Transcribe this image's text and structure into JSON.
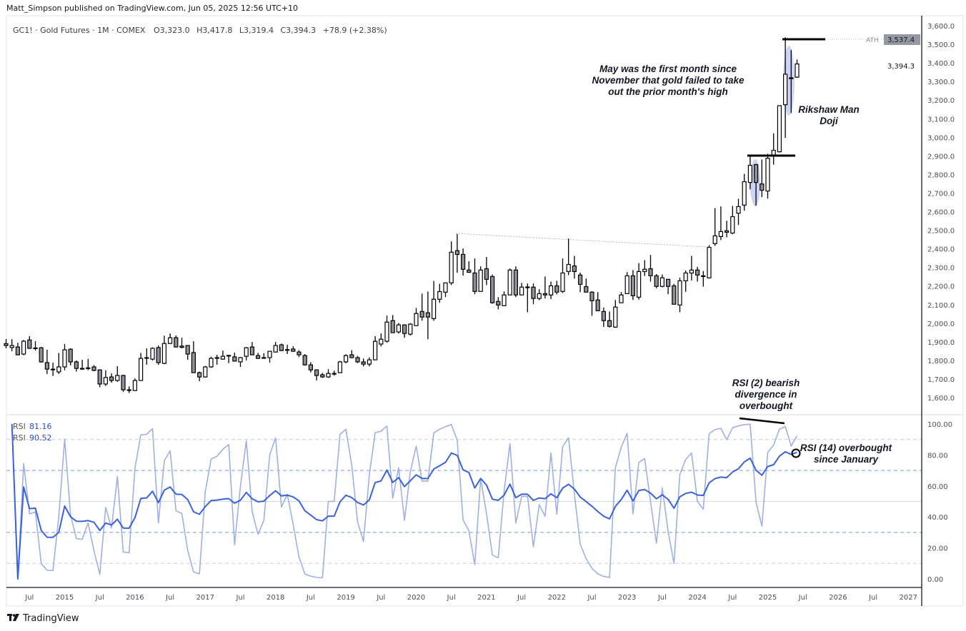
{
  "header": {
    "published": "Matt_Simpson published on TradingView.com, Jun 05, 2025 12:56 UTC+10",
    "symbol_line": "GC1! · Gold Futures · 1M · COMEX",
    "open": "O3,323.0",
    "high": "H3,417.8",
    "low": "L3,319.4",
    "close": "C3,394.3",
    "change": "+78.9 (+2.38%)"
  },
  "price_axis": {
    "labels": [
      "1,600.0",
      "1,700.0",
      "1,800.0",
      "1,900.0",
      "2,000.0",
      "2,100.0",
      "2,200.0",
      "2,300.0",
      "2,400.0",
      "2,500.0",
      "2,600.0",
      "2,700.0",
      "2,800.0",
      "2,900.0",
      "3,000.0",
      "3,100.0",
      "3,200.0",
      "3,300.0",
      "3,400.0",
      "3,500.0",
      "3,600.0"
    ],
    "last_price_label": "3,394.3",
    "ath_label": "3,537.4",
    "ath_tag": "ATH"
  },
  "rsi_axis": {
    "labels": [
      "100.00",
      "80.00",
      "60.00",
      "40.00",
      "20.00",
      "0.00"
    ]
  },
  "rsi_legend": [
    {
      "name": "RSI",
      "value": "81.16"
    },
    {
      "name": "RSI",
      "value": "90.52"
    }
  ],
  "time_axis": {
    "labels": [
      "Jul",
      "2015",
      "Jul",
      "2016",
      "Jul",
      "2017",
      "Jul",
      "2018",
      "Jul",
      "2019",
      "Jul",
      "2020",
      "Jul",
      "2021",
      "Jul",
      "2022",
      "Jul",
      "2023",
      "Jul",
      "2024",
      "Jul",
      "2025",
      "Jul",
      "2026",
      "Jul",
      "2027"
    ]
  },
  "annotations": {
    "may_note": [
      "May was the first month since",
      "November that gold failed to take",
      "out the prior month's high"
    ],
    "doji_note": [
      "Rikshaw Man",
      "Doji"
    ],
    "rsi2_note": [
      "RSI (2) bearish",
      "divergence in",
      "overbought"
    ],
    "rsi14_note": [
      "RSI (14) overbought",
      "since January"
    ]
  },
  "footer": {
    "brand": "TradingView"
  },
  "colors": {
    "up_fill": "#ffffff",
    "down_fill": "#8e9199",
    "candle_border": "#000000",
    "rsi14": "#3a62dc",
    "rsi2": "#9fb0e2",
    "highlight": "#b8c2f2"
  },
  "chart_data": [
    {
      "type": "candlestick",
      "title": "GC1! · Gold Futures · 1M · COMEX",
      "ylim": [
        1600,
        3600
      ],
      "ath": 3537.4,
      "fields": [
        "month",
        "open",
        "high",
        "low",
        "close"
      ],
      "candles": [
        [
          "2014-03",
          1890,
          1915,
          1865,
          1880
        ],
        [
          "2014-04",
          1869,
          1914,
          1849,
          1880
        ],
        [
          "2014-05",
          1872,
          1895,
          1828,
          1830
        ],
        [
          "2014-06",
          1834,
          1910,
          1828,
          1903
        ],
        [
          "2014-07",
          1910,
          1930,
          1862,
          1865
        ],
        [
          "2014-08",
          1867,
          1903,
          1853,
          1866
        ],
        [
          "2014-09",
          1868,
          1872,
          1788,
          1792
        ],
        [
          "2014-10",
          1788,
          1857,
          1727,
          1753
        ],
        [
          "2014-11",
          1753,
          1788,
          1716,
          1752
        ],
        [
          "2014-12",
          1738,
          1840,
          1727,
          1765
        ],
        [
          "2015-01",
          1765,
          1888,
          1747,
          1857
        ],
        [
          "2015-02",
          1860,
          1865,
          1773,
          1792
        ],
        [
          "2015-03",
          1792,
          1800,
          1740,
          1757
        ],
        [
          "2015-04",
          1757,
          1803,
          1750,
          1756
        ],
        [
          "2015-05",
          1759,
          1808,
          1748,
          1760
        ],
        [
          "2015-06",
          1765,
          1775,
          1742,
          1746
        ],
        [
          "2015-07",
          1749,
          1752,
          1656,
          1673
        ],
        [
          "2015-08",
          1673,
          1747,
          1662,
          1708
        ],
        [
          "2015-09",
          1711,
          1730,
          1680,
          1692
        ],
        [
          "2015-10",
          1692,
          1769,
          1685,
          1719
        ],
        [
          "2015-11",
          1719,
          1722,
          1631,
          1642
        ],
        [
          "2015-12",
          1642,
          1660,
          1625,
          1641
        ],
        [
          "2016-01",
          1638,
          1703,
          1636,
          1692
        ],
        [
          "2016-02",
          1692,
          1840,
          1690,
          1811
        ],
        [
          "2016-03",
          1813,
          1865,
          1777,
          1815
        ],
        [
          "2016-04",
          1807,
          1870,
          1800,
          1865
        ],
        [
          "2016-05",
          1869,
          1880,
          1776,
          1788
        ],
        [
          "2016-06",
          1784,
          1933,
          1780,
          1891
        ],
        [
          "2016-07",
          1891,
          1945,
          1888,
          1922
        ],
        [
          "2016-08",
          1922,
          1934,
          1870,
          1872
        ],
        [
          "2016-09",
          1877,
          1922,
          1865,
          1870
        ],
        [
          "2016-10",
          1880,
          1882,
          1803,
          1834
        ],
        [
          "2016-11",
          1842,
          1903,
          1734,
          1734
        ],
        [
          "2016-12",
          1734,
          1740,
          1688,
          1711
        ],
        [
          "2017-01",
          1711,
          1770,
          1708,
          1765
        ],
        [
          "2017-02",
          1765,
          1820,
          1760,
          1811
        ],
        [
          "2017-03",
          1814,
          1830,
          1777,
          1815
        ],
        [
          "2017-04",
          1807,
          1853,
          1803,
          1822
        ],
        [
          "2017-05",
          1827,
          1830,
          1785,
          1826
        ],
        [
          "2017-06",
          1819,
          1842,
          1794,
          1796
        ],
        [
          "2017-07",
          1792,
          1818,
          1765,
          1815
        ],
        [
          "2017-08",
          1822,
          1872,
          1800,
          1868
        ],
        [
          "2017-09",
          1872,
          1899,
          1828,
          1830
        ],
        [
          "2017-10",
          1826,
          1840,
          1808,
          1811
        ],
        [
          "2017-11",
          1814,
          1838,
          1810,
          1815
        ],
        [
          "2017-12",
          1815,
          1849,
          1788,
          1849
        ],
        [
          "2018-01",
          1845,
          1899,
          1843,
          1880
        ],
        [
          "2018-02",
          1884,
          1890,
          1850,
          1853
        ],
        [
          "2018-03",
          1857,
          1884,
          1834,
          1858
        ],
        [
          "2018-04",
          1861,
          1876,
          1847,
          1849
        ],
        [
          "2018-05",
          1845,
          1855,
          1818,
          1830
        ],
        [
          "2018-06",
          1826,
          1834,
          1772,
          1776
        ],
        [
          "2018-07",
          1776,
          1790,
          1735,
          1749
        ],
        [
          "2018-08",
          1749,
          1750,
          1692,
          1719
        ],
        [
          "2018-09",
          1723,
          1733,
          1706,
          1711
        ],
        [
          "2018-10",
          1711,
          1753,
          1706,
          1730
        ],
        [
          "2018-11",
          1730,
          1745,
          1718,
          1730
        ],
        [
          "2018-12",
          1734,
          1797,
          1733,
          1792
        ],
        [
          "2019-01",
          1792,
          1833,
          1785,
          1826
        ],
        [
          "2019-02",
          1830,
          1855,
          1812,
          1815
        ],
        [
          "2019-03",
          1815,
          1824,
          1786,
          1792
        ],
        [
          "2019-04",
          1792,
          1810,
          1768,
          1780
        ],
        [
          "2019-05",
          1780,
          1816,
          1768,
          1803
        ],
        [
          "2019-06",
          1803,
          1930,
          1803,
          1903
        ],
        [
          "2019-07",
          1888,
          1945,
          1875,
          1914
        ],
        [
          "2019-08",
          1903,
          2041,
          1895,
          2006
        ],
        [
          "2019-09",
          2014,
          2044,
          1949,
          1949
        ],
        [
          "2019-10",
          1953,
          2001,
          1944,
          1991
        ],
        [
          "2019-11",
          1991,
          1994,
          1922,
          1945
        ],
        [
          "2019-12",
          1941,
          2000,
          1934,
          1995
        ],
        [
          "2020-01",
          1987,
          2082,
          1987,
          2052
        ],
        [
          "2020-02",
          2063,
          2159,
          2014,
          2033
        ],
        [
          "2020-03",
          2056,
          2170,
          1914,
          2033
        ],
        [
          "2020-04",
          2025,
          2227,
          2013,
          2129
        ],
        [
          "2020-05",
          2129,
          2212,
          2110,
          2170
        ],
        [
          "2020-06",
          2167,
          2217,
          2140,
          2217
        ],
        [
          "2020-07",
          2217,
          2440,
          2205,
          2382
        ],
        [
          "2020-08",
          2390,
          2480,
          2271,
          2370
        ],
        [
          "2020-09",
          2370,
          2402,
          2256,
          2290
        ],
        [
          "2020-10",
          2286,
          2333,
          2270,
          2274
        ],
        [
          "2020-11",
          2270,
          2348,
          2156,
          2171
        ],
        [
          "2020-12",
          2171,
          2306,
          2171,
          2286
        ],
        [
          "2021-01",
          2293,
          2356,
          2205,
          2236
        ],
        [
          "2021-02",
          2251,
          2262,
          2105,
          2110
        ],
        [
          "2021-03",
          2117,
          2140,
          2075,
          2098
        ],
        [
          "2021-04",
          2094,
          2171,
          2094,
          2152
        ],
        [
          "2021-05",
          2152,
          2294,
          2152,
          2286
        ],
        [
          "2021-06",
          2286,
          2306,
          2140,
          2152
        ],
        [
          "2021-07",
          2152,
          2217,
          2152,
          2194
        ],
        [
          "2021-08",
          2195,
          2214,
          2059,
          2194
        ],
        [
          "2021-09",
          2194,
          2214,
          2102,
          2133
        ],
        [
          "2021-10",
          2133,
          2183,
          2124,
          2159
        ],
        [
          "2021-11",
          2159,
          2251,
          2133,
          2152
        ],
        [
          "2021-12",
          2152,
          2224,
          2130,
          2201
        ],
        [
          "2022-01",
          2201,
          2228,
          2155,
          2167
        ],
        [
          "2022-02",
          2171,
          2348,
          2162,
          2270
        ],
        [
          "2022-03",
          2278,
          2455,
          2259,
          2316
        ],
        [
          "2022-04",
          2308,
          2362,
          2240,
          2278
        ],
        [
          "2022-05",
          2259,
          2272,
          2167,
          2209
        ],
        [
          "2022-06",
          2197,
          2240,
          2167,
          2167
        ],
        [
          "2022-07",
          2167,
          2172,
          2040,
          2121
        ],
        [
          "2022-08",
          2125,
          2167,
          2067,
          2067
        ],
        [
          "2022-09",
          2063,
          2084,
          1980,
          2014
        ],
        [
          "2022-10",
          2014,
          2063,
          1977,
          1983
        ],
        [
          "2022-11",
          1979,
          2125,
          1975,
          2087
        ],
        [
          "2022-12",
          2110,
          2168,
          2110,
          2152
        ],
        [
          "2023-01",
          2159,
          2275,
          2159,
          2255
        ],
        [
          "2023-02",
          2255,
          2286,
          2125,
          2148
        ],
        [
          "2023-03",
          2140,
          2323,
          2127,
          2278
        ],
        [
          "2023-04",
          2278,
          2339,
          2254,
          2290
        ],
        [
          "2023-05",
          2293,
          2367,
          2224,
          2255
        ],
        [
          "2023-06",
          2255,
          2264,
          2188,
          2198
        ],
        [
          "2023-07",
          2198,
          2262,
          2193,
          2244
        ],
        [
          "2023-08",
          2236,
          2236,
          2156,
          2198
        ],
        [
          "2023-09",
          2201,
          2211,
          2102,
          2102
        ],
        [
          "2023-10",
          2098,
          2245,
          2059,
          2228
        ],
        [
          "2023-11",
          2228,
          2283,
          2169,
          2270
        ],
        [
          "2023-12",
          2270,
          2362,
          2230,
          2286
        ],
        [
          "2024-01",
          2286,
          2303,
          2224,
          2259
        ],
        [
          "2024-02",
          2255,
          2281,
          2197,
          2255
        ],
        [
          "2024-03",
          2244,
          2420,
          2240,
          2408
        ],
        [
          "2024-04",
          2428,
          2619,
          2416,
          2470
        ],
        [
          "2024-05",
          2466,
          2628,
          2447,
          2493
        ],
        [
          "2024-06",
          2497,
          2551,
          2462,
          2489
        ],
        [
          "2024-07",
          2485,
          2631,
          2478,
          2573
        ],
        [
          "2024-08",
          2592,
          2669,
          2528,
          2627
        ],
        [
          "2024-09",
          2635,
          2803,
          2605,
          2761
        ],
        [
          "2024-10",
          2757,
          2903,
          2720,
          2849
        ],
        [
          "2024-11",
          2853,
          2857,
          2632,
          2757
        ],
        [
          "2024-12",
          2749,
          2880,
          2678,
          2715
        ],
        [
          "2025-01",
          2711,
          2911,
          2670,
          2887
        ],
        [
          "2025-02",
          2905,
          3021,
          2853,
          2930
        ],
        [
          "2025-03",
          2922,
          3170,
          2918,
          3170
        ],
        [
          "2025-04",
          3175,
          3537.4,
          2997,
          3339
        ],
        [
          "2025-05",
          3320,
          3470,
          3130,
          3315
        ],
        [
          "2025-06",
          3323,
          3417.8,
          3319.4,
          3394.3
        ]
      ]
    },
    {
      "type": "line",
      "title": "RSI",
      "ylim": [
        0,
        100
      ],
      "levels": [
        90,
        70,
        50,
        30,
        10
      ],
      "series": [
        {
          "name": "RSI",
          "period": 14,
          "color": "#3a62dc",
          "last": 81.16
        },
        {
          "name": "RSI",
          "period": 2,
          "color": "#9fb0e2",
          "last": 90.52
        }
      ]
    }
  ]
}
